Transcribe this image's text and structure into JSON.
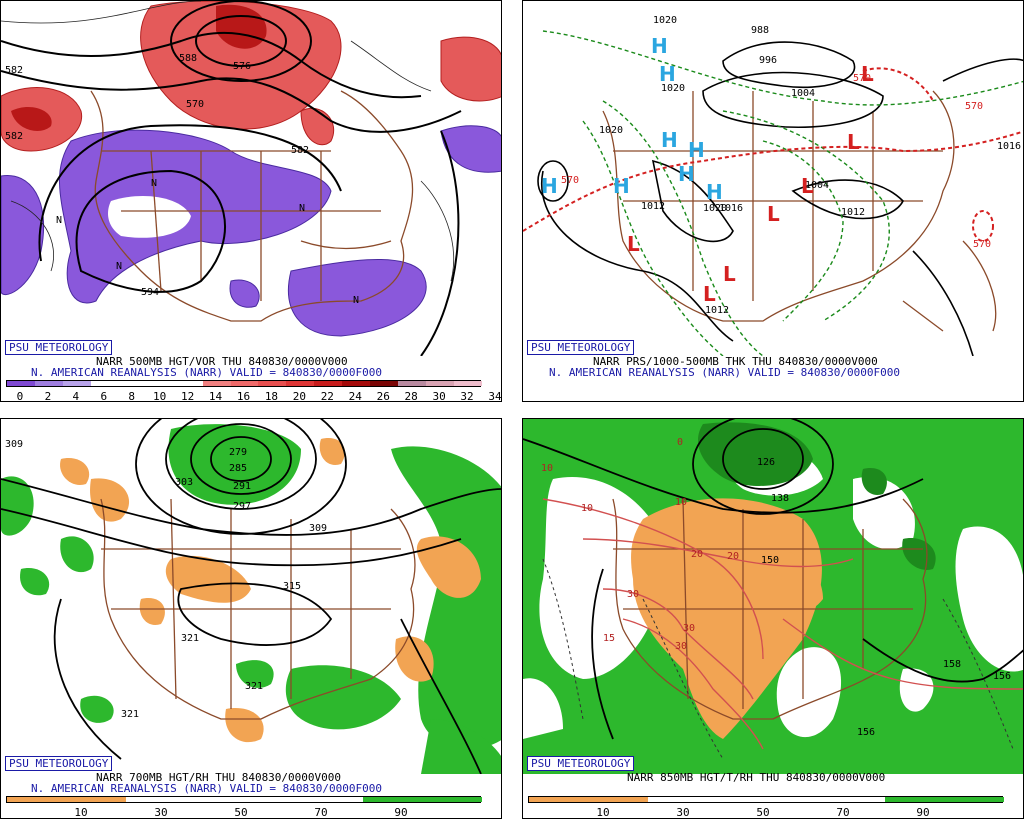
{
  "badge_text": "PSU METEOROLOGY",
  "panels": {
    "p1": {
      "caption1": "NARR 500MB HGT/VOR THU 840830/0000V000",
      "caption2": "N. AMERICAN REANALYSIS (NARR) VALID = 840830/0000F000",
      "contour_labels": [
        "582",
        "576",
        "570",
        "582",
        "582",
        "588",
        "594"
      ],
      "marker_label": "N",
      "scale_labels": [
        "0",
        "2",
        "4",
        "6",
        "8",
        "10",
        "12",
        "14",
        "16",
        "18",
        "20",
        "22",
        "24",
        "26",
        "28",
        "30",
        "32",
        "34"
      ],
      "scale_colors": [
        "#7f49d3",
        "#9f7ee0",
        "#b8a3ea",
        "#ffffff",
        "#ffffff",
        "#ffffff",
        "#ffffff",
        "#f08080",
        "#ef6a6a",
        "#e85050",
        "#dd3535",
        "#c81c1c",
        "#a50a0a",
        "#7a0505",
        "#b98aa0",
        "#d9a3b3",
        "#efbdcc"
      ]
    },
    "p2": {
      "caption1": "NARR PRS/1000-500MB THK THU 840830/0000V000",
      "caption2": "N. AMERICAN REANALYSIS (NARR) VALID = 840830/0000F000",
      "contour_labels": [
        "1020",
        "988",
        "996",
        "1004",
        "1020",
        "1020",
        "1004",
        "1012",
        "1020",
        "1012",
        "1016",
        "1012",
        "1016"
      ],
      "thk_labels": [
        "570",
        "570",
        "570",
        "570"
      ],
      "high_label": "H",
      "low_label": "L"
    },
    "p3": {
      "caption1": "NARR 700MB HGT/RH THU 840830/0000V000",
      "caption2": "N. AMERICAN REANALYSIS (NARR) VALID = 840830/0000F000",
      "contour_labels": [
        "309",
        "279",
        "285",
        "291",
        "297",
        "303",
        "309",
        "315",
        "321",
        "321",
        "321"
      ],
      "scale_labels": [
        "10",
        "30",
        "50",
        "70",
        "90"
      ]
    },
    "p4": {
      "caption1": "NARR 850MB HGT/T/RH THU 840830/0000V000",
      "scale_labels": [
        "10",
        "30",
        "50",
        "70",
        "90"
      ],
      "contour_labels": [
        "126",
        "138",
        "150",
        "158",
        "156",
        "156"
      ],
      "temp_labels": [
        "0",
        "10",
        "10",
        "10",
        "20",
        "20",
        "30",
        "30",
        "30",
        "15"
      ]
    }
  }
}
